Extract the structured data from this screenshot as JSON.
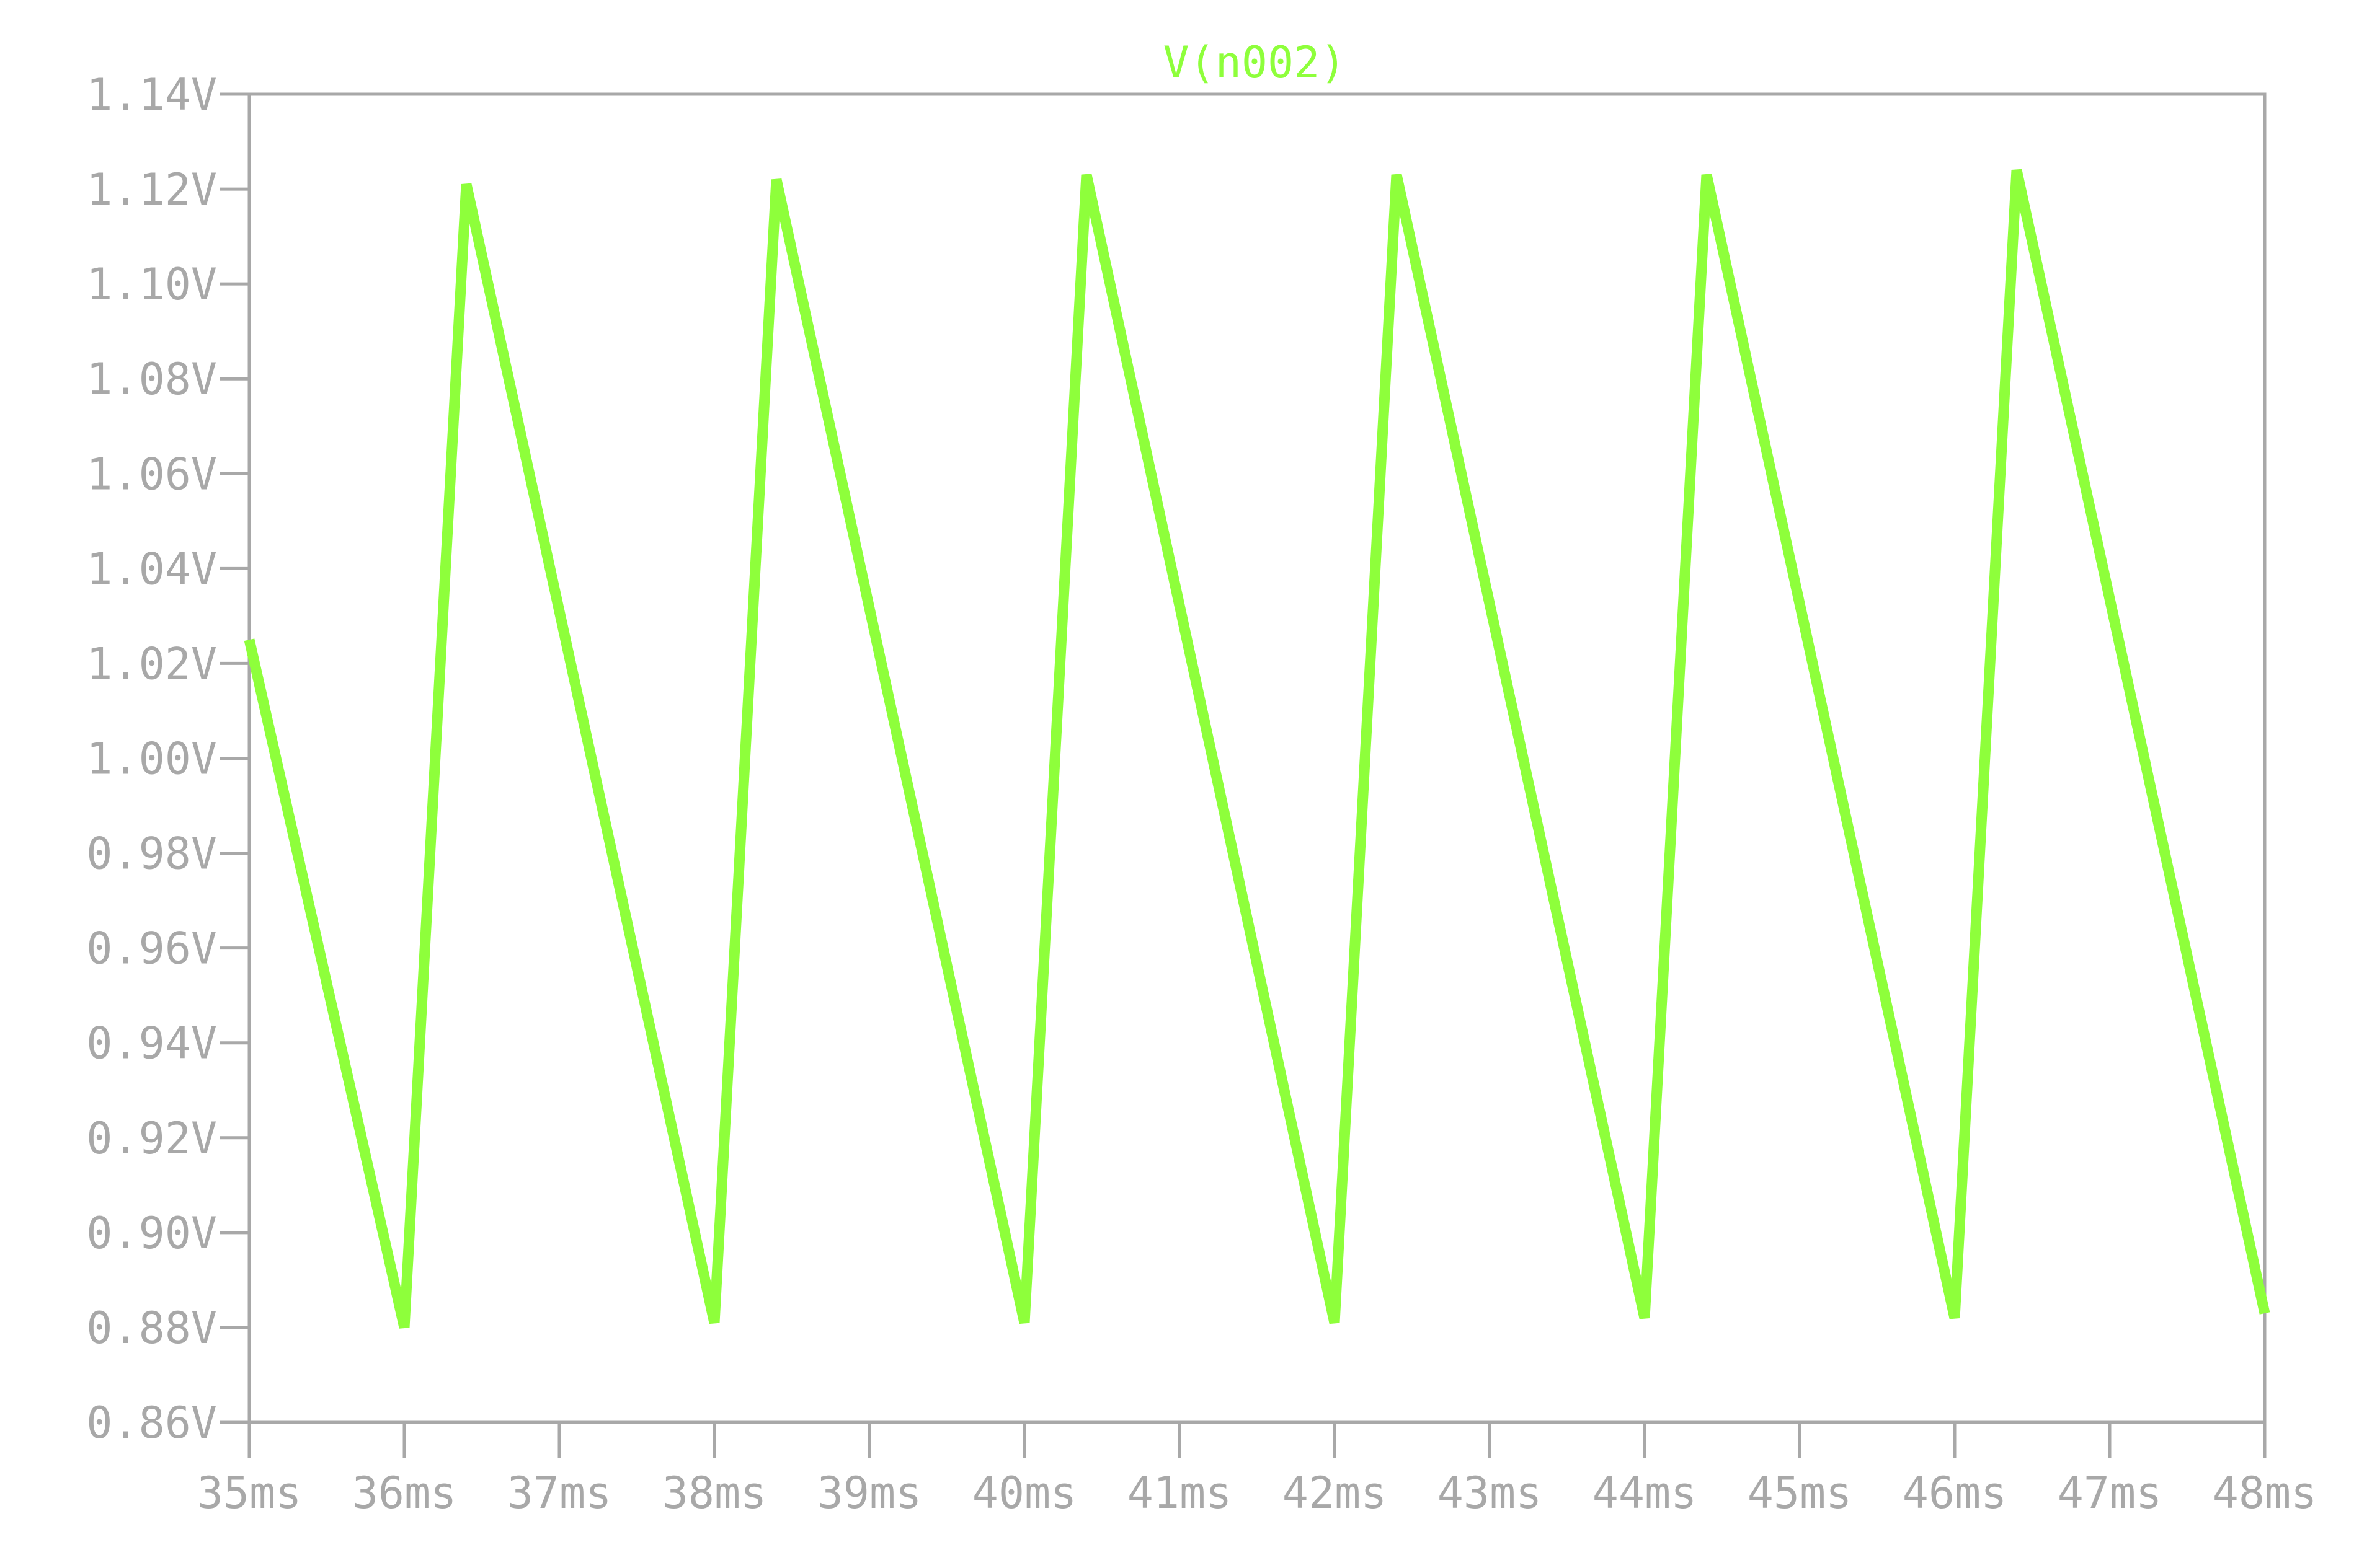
{
  "chart_data": {
    "type": "line",
    "title": "V(n002)",
    "xlabel": "",
    "ylabel": "",
    "xlim": [
      35,
      48
    ],
    "ylim": [
      0.86,
      1.14
    ],
    "x_unit": "ms",
    "y_unit": "V",
    "grid": false,
    "colors": {
      "series": "#8eff3b",
      "axes": "#a8a8a8",
      "background": "#ffffff"
    },
    "x_ticks": [
      "35ms",
      "36ms",
      "37ms",
      "38ms",
      "39ms",
      "40ms",
      "41ms",
      "42ms",
      "43ms",
      "44ms",
      "45ms",
      "46ms",
      "47ms",
      "48ms"
    ],
    "y_ticks": [
      "0.86V",
      "0.88V",
      "0.90V",
      "0.92V",
      "0.94V",
      "0.96V",
      "0.98V",
      "1.00V",
      "1.02V",
      "1.04V",
      "1.06V",
      "1.08V",
      "1.10V",
      "1.12V",
      "1.14V"
    ],
    "series": [
      {
        "name": "V(n002)",
        "x": [
          35.0,
          36.0,
          36.4,
          38.0,
          38.4,
          40.0,
          40.4,
          42.0,
          42.4,
          44.0,
          44.4,
          46.0,
          46.4,
          48.0
        ],
        "y": [
          1.025,
          0.88,
          1.121,
          0.881,
          1.122,
          0.881,
          1.123,
          0.881,
          1.123,
          0.882,
          1.123,
          0.882,
          1.124,
          0.883
        ]
      }
    ]
  }
}
